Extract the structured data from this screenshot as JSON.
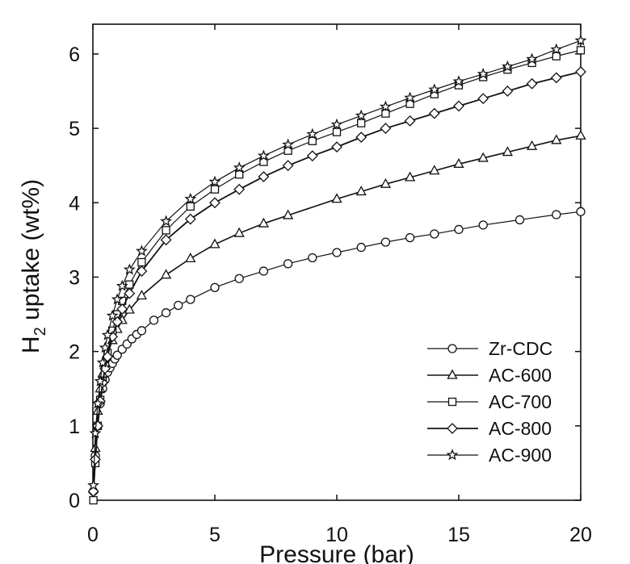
{
  "chart_data": {
    "type": "line",
    "title": "",
    "xlabel": "Pressure (bar)",
    "ylabel": "H2 uptake (wt%)",
    "ylabel_main": "H",
    "ylabel_sub": "2",
    "ylabel_rest": " uptake (wt%)",
    "xlim": [
      0,
      20
    ],
    "ylim": [
      0,
      6.4
    ],
    "xticks": [
      "0",
      "5",
      "10",
      "15",
      "20"
    ],
    "yticks": [
      "0",
      "1",
      "2",
      "3",
      "4",
      "5",
      "6"
    ],
    "grid": false,
    "legend_position": "bottom-right",
    "series": [
      {
        "name": "Zr-CDC",
        "marker": "circle",
        "x": [
          0.02,
          0.1,
          0.2,
          0.3,
          0.4,
          0.5,
          0.6,
          0.7,
          0.8,
          0.9,
          1.0,
          1.2,
          1.4,
          1.6,
          1.8,
          2.0,
          2.5,
          3.0,
          3.5,
          4.0,
          5.0,
          6.0,
          7.0,
          8.0,
          9.0,
          10.0,
          11.0,
          12.0,
          13.0,
          14.0,
          15.0,
          16.0,
          17.5,
          19.0,
          20.0
        ],
        "y": [
          0.12,
          0.6,
          1.0,
          1.3,
          1.5,
          1.62,
          1.72,
          1.78,
          1.84,
          1.9,
          1.95,
          2.03,
          2.1,
          2.17,
          2.23,
          2.28,
          2.42,
          2.52,
          2.62,
          2.7,
          2.86,
          2.98,
          3.08,
          3.18,
          3.26,
          3.33,
          3.4,
          3.47,
          3.53,
          3.58,
          3.64,
          3.7,
          3.77,
          3.84,
          3.88
        ]
      },
      {
        "name": "AC-600",
        "marker": "triangle",
        "x": [
          0.02,
          0.1,
          0.2,
          0.3,
          0.4,
          0.5,
          0.6,
          0.8,
          1.0,
          1.2,
          1.5,
          2.0,
          3.0,
          4.0,
          5.0,
          6.0,
          7.0,
          8.0,
          10.0,
          11.0,
          12.0,
          13.0,
          14.0,
          15.0,
          16.0,
          17.0,
          18.0,
          19.0,
          20.0
        ],
        "y": [
          0.15,
          0.7,
          1.2,
          1.5,
          1.7,
          1.85,
          1.97,
          2.15,
          2.3,
          2.42,
          2.56,
          2.75,
          3.03,
          3.25,
          3.44,
          3.59,
          3.72,
          3.83,
          4.05,
          4.15,
          4.25,
          4.34,
          4.43,
          4.52,
          4.6,
          4.68,
          4.76,
          4.84,
          4.9
        ]
      },
      {
        "name": "AC-700",
        "marker": "square",
        "x": [
          0.02,
          0.1,
          0.2,
          0.3,
          0.4,
          0.5,
          0.6,
          0.8,
          1.0,
          1.2,
          1.5,
          2.0,
          3.0,
          4.0,
          5.0,
          6.0,
          7.0,
          8.0,
          9.0,
          10.0,
          11.0,
          12.0,
          13.0,
          14.0,
          15.0,
          16.0,
          17.0,
          18.0,
          19.0,
          20.0
        ],
        "y": [
          0.0,
          0.5,
          1.0,
          1.35,
          1.6,
          1.8,
          1.98,
          2.28,
          2.5,
          2.68,
          2.9,
          3.2,
          3.63,
          3.95,
          4.18,
          4.38,
          4.55,
          4.7,
          4.83,
          4.95,
          5.07,
          5.2,
          5.33,
          5.46,
          5.58,
          5.69,
          5.79,
          5.88,
          5.97,
          6.05
        ]
      },
      {
        "name": "AC-800",
        "marker": "diamond",
        "x": [
          0.02,
          0.1,
          0.2,
          0.3,
          0.4,
          0.5,
          0.6,
          0.8,
          1.0,
          1.2,
          1.5,
          2.0,
          3.0,
          4.0,
          5.0,
          6.0,
          7.0,
          8.0,
          9.0,
          10.0,
          11.0,
          12.0,
          13.0,
          14.0,
          15.0,
          16.0,
          17.0,
          18.0,
          19.0,
          20.0
        ],
        "y": [
          0.12,
          0.55,
          1.0,
          1.33,
          1.58,
          1.77,
          1.93,
          2.2,
          2.4,
          2.57,
          2.78,
          3.08,
          3.5,
          3.78,
          4.0,
          4.18,
          4.35,
          4.5,
          4.63,
          4.75,
          4.88,
          5.0,
          5.1,
          5.2,
          5.3,
          5.4,
          5.5,
          5.6,
          5.68,
          5.76
        ]
      },
      {
        "name": "AC-900",
        "marker": "star",
        "x": [
          0.02,
          0.1,
          0.2,
          0.3,
          0.4,
          0.5,
          0.6,
          0.8,
          1.0,
          1.2,
          1.5,
          2.0,
          3.0,
          4.0,
          5.0,
          6.0,
          7.0,
          8.0,
          9.0,
          10.0,
          11.0,
          12.0,
          13.0,
          14.0,
          15.0,
          16.0,
          17.0,
          18.0,
          19.0,
          20.0
        ],
        "y": [
          0.2,
          0.9,
          1.3,
          1.6,
          1.85,
          2.05,
          2.22,
          2.48,
          2.7,
          2.88,
          3.1,
          3.35,
          3.75,
          4.05,
          4.28,
          4.47,
          4.63,
          4.78,
          4.92,
          5.05,
          5.17,
          5.29,
          5.41,
          5.52,
          5.63,
          5.73,
          5.83,
          5.93,
          6.06,
          6.18
        ]
      }
    ]
  }
}
